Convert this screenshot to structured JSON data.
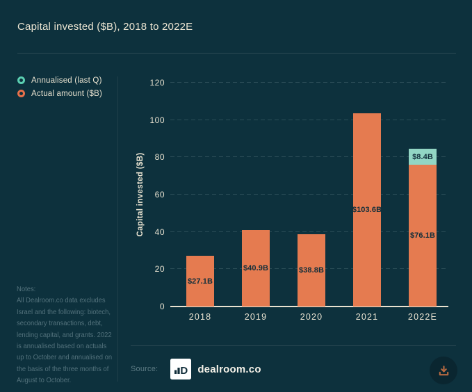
{
  "title": "Capital invested ($B), 2018 to 2022E",
  "legend": {
    "items": [
      {
        "label": "Annualised (last Q)",
        "color": "#5bd0b2"
      },
      {
        "label": "Actual amount ($B)",
        "color": "#e7704a"
      }
    ]
  },
  "notes": {
    "heading": "Notes:",
    "lines": [
      "All Dealroom.co data excludes",
      "Israel and the following: biotech,",
      "secondary transactions, debt,",
      "lending capital, and grants. 2022",
      "is annualised based on actuals",
      "up to October and annualised on",
      "the basis of the three months of",
      "August to October."
    ]
  },
  "source": {
    "label": "Source:",
    "brand": "dealroom.co"
  },
  "colors": {
    "background": "#0d313d",
    "actual_bar": "#e57b50",
    "annualised_bar": "#92d6c4",
    "cream_text": "#ebe5d2",
    "bar_label_text": "#112e3a",
    "muted_text": "#53727c",
    "download_icon": "#b76a42"
  },
  "chart_data": {
    "type": "bar",
    "stacked": true,
    "title": "Capital invested ($B), 2018 to 2022E",
    "categories": [
      "2018",
      "2019",
      "2020",
      "2021",
      "2022E"
    ],
    "series": [
      {
        "name": "Actual amount ($B)",
        "color": "#e57b50",
        "values": [
          27.1,
          40.9,
          38.8,
          103.6,
          76.1
        ],
        "labels": [
          "$27.1B",
          "$40.9B",
          "$38.8B",
          "$103.6B",
          "$76.1B"
        ]
      },
      {
        "name": "Annualised (last Q)",
        "color": "#92d6c4",
        "values": [
          0,
          0,
          0,
          0,
          8.4
        ],
        "labels": [
          "",
          "",
          "",
          "",
          "$8.4B"
        ]
      }
    ],
    "xlabel": "",
    "ylabel": "Capital invested ($B)",
    "ylim": [
      0,
      120
    ],
    "yticks": [
      0,
      20,
      40,
      60,
      80,
      100,
      120
    ],
    "grid": "horizontal-dashed",
    "legend_position": "left"
  }
}
